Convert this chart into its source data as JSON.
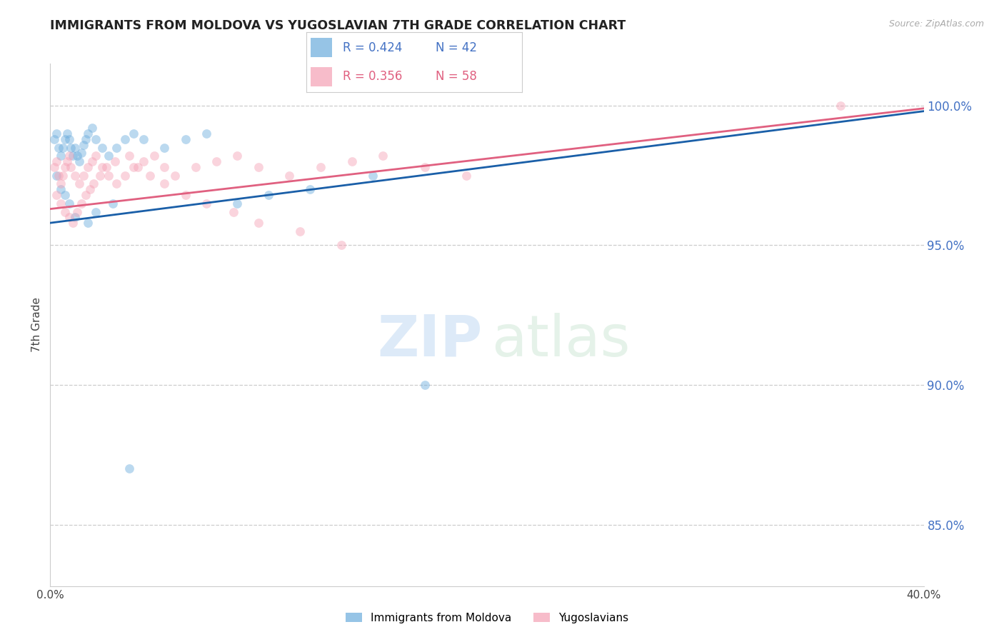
{
  "title": "IMMIGRANTS FROM MOLDOVA VS YUGOSLAVIAN 7TH GRADE CORRELATION CHART",
  "source": "Source: ZipAtlas.com",
  "ylabel": "7th Grade",
  "ytick_labels": [
    "85.0%",
    "90.0%",
    "95.0%",
    "100.0%"
  ],
  "ytick_values": [
    0.85,
    0.9,
    0.95,
    1.0
  ],
  "xlim": [
    0.0,
    0.42
  ],
  "ylim": [
    0.828,
    1.015
  ],
  "legend_r1": "0.424",
  "legend_n1": "42",
  "legend_r2": "0.356",
  "legend_n2": "58",
  "scatter_blue_x": [
    0.002,
    0.003,
    0.004,
    0.005,
    0.006,
    0.007,
    0.008,
    0.009,
    0.01,
    0.011,
    0.012,
    0.013,
    0.014,
    0.015,
    0.016,
    0.017,
    0.018,
    0.02,
    0.022,
    0.025,
    0.028,
    0.032,
    0.036,
    0.04,
    0.045,
    0.055,
    0.065,
    0.075,
    0.09,
    0.105,
    0.125,
    0.155,
    0.18,
    0.003,
    0.005,
    0.007,
    0.009,
    0.012,
    0.018,
    0.022,
    0.03,
    0.038
  ],
  "scatter_blue_y": [
    0.988,
    0.99,
    0.985,
    0.982,
    0.985,
    0.988,
    0.99,
    0.988,
    0.985,
    0.982,
    0.985,
    0.982,
    0.98,
    0.983,
    0.986,
    0.988,
    0.99,
    0.992,
    0.988,
    0.985,
    0.982,
    0.985,
    0.988,
    0.99,
    0.988,
    0.985,
    0.988,
    0.99,
    0.965,
    0.968,
    0.97,
    0.975,
    0.9,
    0.975,
    0.97,
    0.968,
    0.965,
    0.96,
    0.958,
    0.962,
    0.965,
    0.87
  ],
  "scatter_pink_x": [
    0.002,
    0.003,
    0.004,
    0.005,
    0.006,
    0.007,
    0.008,
    0.009,
    0.01,
    0.012,
    0.014,
    0.016,
    0.018,
    0.02,
    0.022,
    0.025,
    0.028,
    0.032,
    0.036,
    0.04,
    0.045,
    0.05,
    0.055,
    0.06,
    0.07,
    0.08,
    0.09,
    0.1,
    0.115,
    0.13,
    0.145,
    0.16,
    0.18,
    0.2,
    0.003,
    0.005,
    0.007,
    0.009,
    0.011,
    0.013,
    0.015,
    0.017,
    0.019,
    0.021,
    0.024,
    0.027,
    0.031,
    0.038,
    0.042,
    0.048,
    0.055,
    0.065,
    0.075,
    0.088,
    0.1,
    0.12,
    0.14,
    0.38
  ],
  "scatter_pink_y": [
    0.978,
    0.98,
    0.975,
    0.972,
    0.975,
    0.978,
    0.98,
    0.982,
    0.978,
    0.975,
    0.972,
    0.975,
    0.978,
    0.98,
    0.982,
    0.978,
    0.975,
    0.972,
    0.975,
    0.978,
    0.98,
    0.982,
    0.978,
    0.975,
    0.978,
    0.98,
    0.982,
    0.978,
    0.975,
    0.978,
    0.98,
    0.982,
    0.978,
    0.975,
    0.968,
    0.965,
    0.962,
    0.96,
    0.958,
    0.962,
    0.965,
    0.968,
    0.97,
    0.972,
    0.975,
    0.978,
    0.98,
    0.982,
    0.978,
    0.975,
    0.972,
    0.968,
    0.965,
    0.962,
    0.958,
    0.955,
    0.95,
    1.0
  ],
  "blue_scatter_color": "#6aabdc",
  "pink_scatter_color": "#f4a0b4",
  "blue_line_color": "#1a5fa8",
  "pink_line_color": "#e06080",
  "marker_size": 85,
  "marker_alpha": 0.45,
  "trendline_blue_x0": 0.0,
  "trendline_blue_x1": 0.42,
  "trendline_blue_y0": 0.958,
  "trendline_blue_y1": 0.998,
  "trendline_pink_x0": 0.0,
  "trendline_pink_x1": 0.42,
  "trendline_pink_y0": 0.963,
  "trendline_pink_y1": 0.999,
  "right_label_color": "#4472c4",
  "legend_r_color": "#4472c4",
  "legend_n_color": "#4472c4",
  "legend_r2_color": "#e06080",
  "legend_n2_color": "#e06080",
  "bottom_legend_labels": [
    "Immigrants from Moldova",
    "Yugoslavians"
  ]
}
